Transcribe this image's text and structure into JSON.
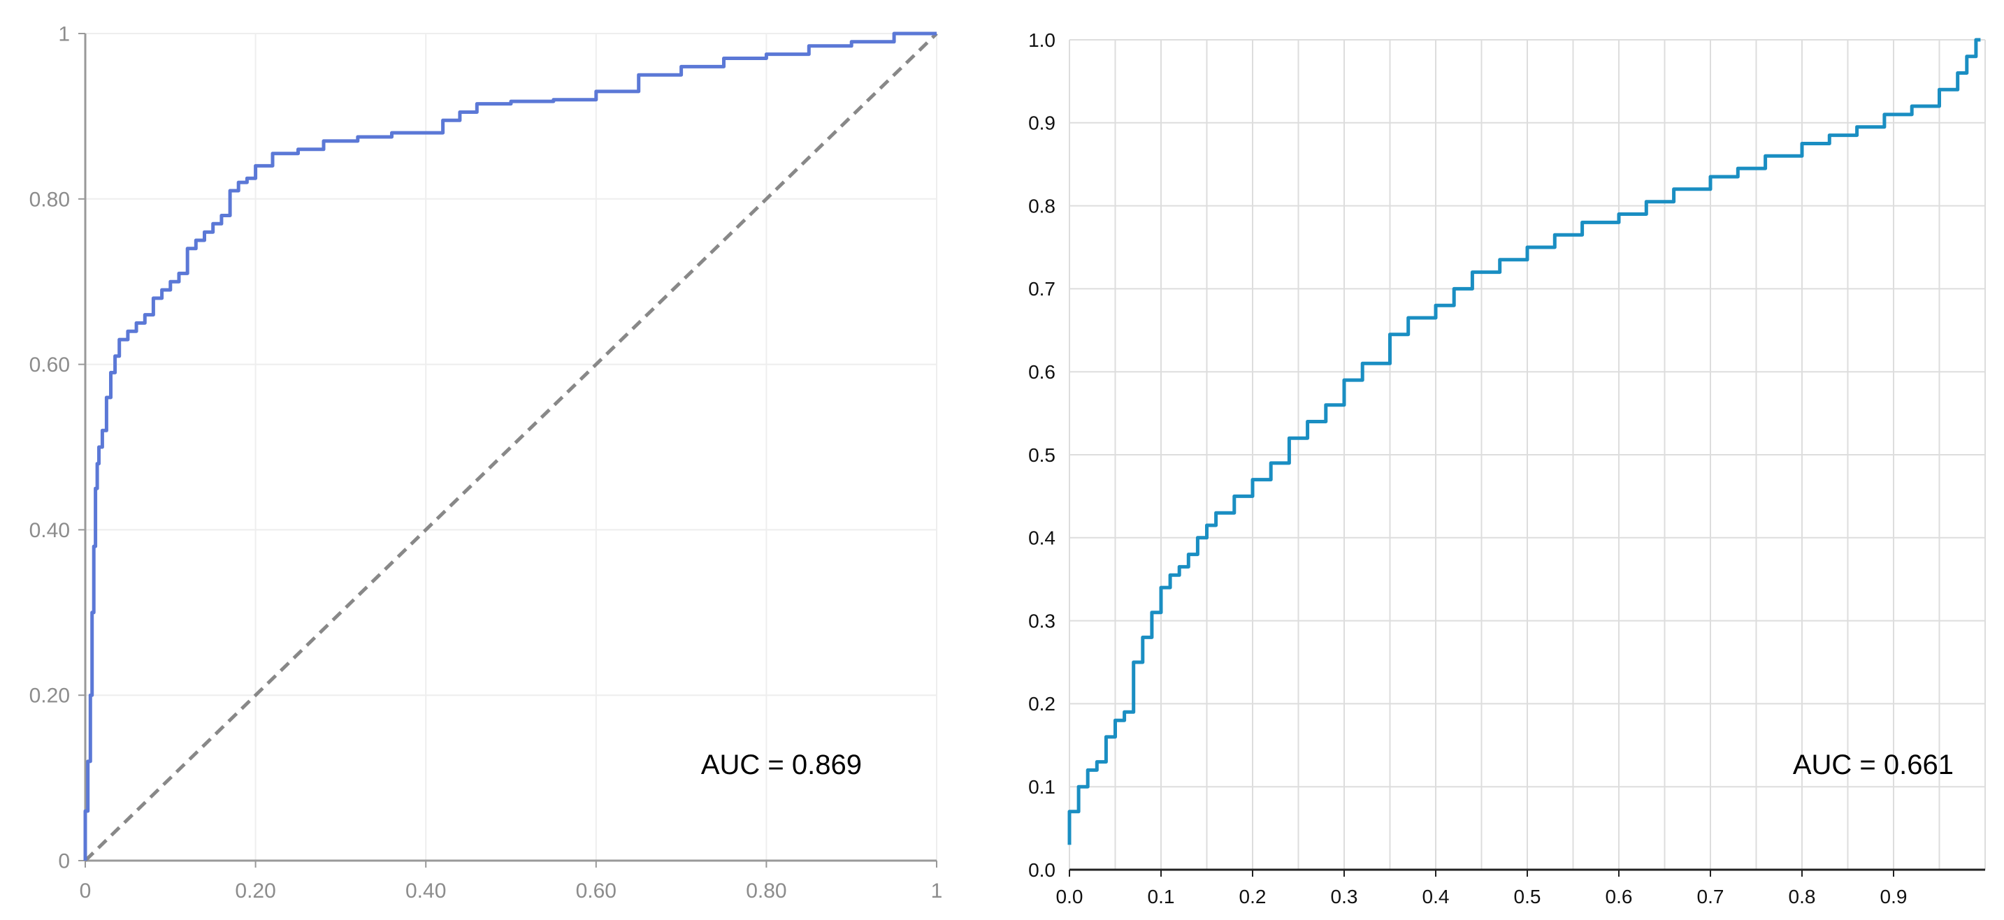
{
  "chart_data": [
    {
      "type": "line",
      "title": "",
      "xlabel": "",
      "ylabel": "",
      "xlim": [
        0,
        1
      ],
      "ylim": [
        0,
        1
      ],
      "grid": true,
      "x_ticks": [
        "0",
        "0.20",
        "0.40",
        "0.60",
        "0.80",
        "1"
      ],
      "y_ticks": [
        "0",
        "0.20",
        "0.40",
        "0.60",
        "0.80",
        "1"
      ],
      "annotation": "AUC = 0.869",
      "colors": {
        "curve": "#5b78d6",
        "reference": "#888888",
        "axis": "#999999",
        "tick_label": "#8c8c8c",
        "grid": "#eeeeee"
      },
      "series": [
        {
          "values": [
            [
              0,
              0
            ],
            [
              0.003,
              0.06
            ],
            [
              0.006,
              0.12
            ],
            [
              0.008,
              0.2
            ],
            [
              0.01,
              0.3
            ],
            [
              0.012,
              0.38
            ],
            [
              0.014,
              0.45
            ],
            [
              0.016,
              0.48
            ],
            [
              0.02,
              0.5
            ],
            [
              0.025,
              0.52
            ],
            [
              0.03,
              0.56
            ],
            [
              0.035,
              0.59
            ],
            [
              0.04,
              0.61
            ],
            [
              0.05,
              0.63
            ],
            [
              0.06,
              0.64
            ],
            [
              0.07,
              0.65
            ],
            [
              0.08,
              0.66
            ],
            [
              0.09,
              0.68
            ],
            [
              0.1,
              0.69
            ],
            [
              0.11,
              0.7
            ],
            [
              0.12,
              0.71
            ],
            [
              0.13,
              0.74
            ],
            [
              0.14,
              0.75
            ],
            [
              0.15,
              0.76
            ],
            [
              0.16,
              0.77
            ],
            [
              0.17,
              0.78
            ],
            [
              0.18,
              0.81
            ],
            [
              0.19,
              0.82
            ],
            [
              0.2,
              0.825
            ],
            [
              0.22,
              0.84
            ],
            [
              0.25,
              0.855
            ],
            [
              0.28,
              0.86
            ],
            [
              0.32,
              0.87
            ],
            [
              0.36,
              0.875
            ],
            [
              0.42,
              0.88
            ],
            [
              0.44,
              0.895
            ],
            [
              0.46,
              0.905
            ],
            [
              0.5,
              0.915
            ],
            [
              0.55,
              0.918
            ],
            [
              0.6,
              0.92
            ],
            [
              0.65,
              0.93
            ],
            [
              0.7,
              0.95
            ],
            [
              0.75,
              0.96
            ],
            [
              0.8,
              0.97
            ],
            [
              0.85,
              0.975
            ],
            [
              0.9,
              0.985
            ],
            [
              0.95,
              0.99
            ],
            [
              0.98,
              1.0
            ],
            [
              1.0,
              1.0
            ]
          ]
        },
        {
          "values": [
            [
              0,
              0
            ],
            [
              1,
              1
            ]
          ]
        }
      ]
    },
    {
      "type": "line",
      "title": "",
      "xlabel": "",
      "ylabel": "",
      "xlim": [
        0,
        1
      ],
      "ylim": [
        0,
        1
      ],
      "grid": true,
      "x_ticks": [
        "0.0",
        "0.1",
        "0.2",
        "0.3",
        "0.4",
        "0.5",
        "0.6",
        "0.7",
        "0.8",
        "0.9"
      ],
      "y_ticks": [
        "0.0",
        "0.1",
        "0.2",
        "0.3",
        "0.4",
        "0.5",
        "0.6",
        "0.7",
        "0.8",
        "0.9",
        "1.0"
      ],
      "annotation": "AUC = 0.661",
      "colors": {
        "curve": "#1a8ec2",
        "axis": "#222222",
        "tick_label": "#111111",
        "grid": "#dddddd"
      },
      "series": [
        {
          "values": [
            [
              0.0,
              0.03
            ],
            [
              0.01,
              0.07
            ],
            [
              0.02,
              0.1
            ],
            [
              0.03,
              0.12
            ],
            [
              0.04,
              0.13
            ],
            [
              0.05,
              0.16
            ],
            [
              0.06,
              0.18
            ],
            [
              0.07,
              0.19
            ],
            [
              0.08,
              0.25
            ],
            [
              0.09,
              0.28
            ],
            [
              0.1,
              0.31
            ],
            [
              0.11,
              0.34
            ],
            [
              0.12,
              0.355
            ],
            [
              0.13,
              0.365
            ],
            [
              0.14,
              0.38
            ],
            [
              0.15,
              0.4
            ],
            [
              0.16,
              0.415
            ],
            [
              0.18,
              0.43
            ],
            [
              0.2,
              0.45
            ],
            [
              0.22,
              0.47
            ],
            [
              0.24,
              0.49
            ],
            [
              0.26,
              0.52
            ],
            [
              0.28,
              0.54
            ],
            [
              0.3,
              0.56
            ],
            [
              0.32,
              0.59
            ],
            [
              0.35,
              0.61
            ],
            [
              0.37,
              0.645
            ],
            [
              0.4,
              0.665
            ],
            [
              0.42,
              0.68
            ],
            [
              0.44,
              0.7
            ],
            [
              0.47,
              0.72
            ],
            [
              0.5,
              0.735
            ],
            [
              0.53,
              0.75
            ],
            [
              0.56,
              0.765
            ],
            [
              0.6,
              0.78
            ],
            [
              0.63,
              0.79
            ],
            [
              0.66,
              0.805
            ],
            [
              0.7,
              0.82
            ],
            [
              0.73,
              0.835
            ],
            [
              0.76,
              0.845
            ],
            [
              0.8,
              0.86
            ],
            [
              0.83,
              0.875
            ],
            [
              0.86,
              0.885
            ],
            [
              0.89,
              0.895
            ],
            [
              0.92,
              0.91
            ],
            [
              0.95,
              0.92
            ],
            [
              0.97,
              0.94
            ],
            [
              0.98,
              0.96
            ],
            [
              0.99,
              0.98
            ],
            [
              0.995,
              1.0
            ]
          ]
        }
      ]
    }
  ]
}
